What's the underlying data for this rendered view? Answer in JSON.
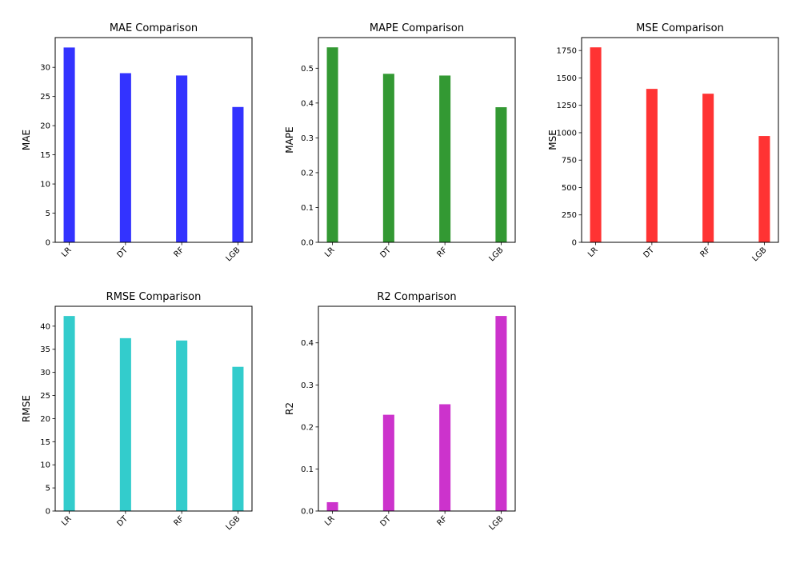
{
  "chart_data": [
    {
      "type": "bar",
      "title": "MAE Comparison",
      "xlabel": "",
      "ylabel": "MAE",
      "categories": [
        "LR",
        "DT",
        "RF",
        "LGB"
      ],
      "values": [
        33.4,
        29.0,
        28.6,
        23.2
      ],
      "ylim": [
        0,
        35.1
      ],
      "yticks": [
        0,
        5,
        10,
        15,
        20,
        25,
        30
      ],
      "color": "#3333ff",
      "grid": false
    },
    {
      "type": "bar",
      "title": "MAPE Comparison",
      "xlabel": "",
      "ylabel": "MAPE",
      "categories": [
        "LR",
        "DT",
        "RF",
        "LGB"
      ],
      "values": [
        0.56,
        0.484,
        0.479,
        0.388
      ],
      "ylim": [
        0,
        0.588
      ],
      "yticks": [
        0.0,
        0.1,
        0.2,
        0.3,
        0.4,
        0.5
      ],
      "ytick_decimals": 1,
      "color": "#339933",
      "grid": false
    },
    {
      "type": "bar",
      "title": "MSE Comparison",
      "xlabel": "",
      "ylabel": "MSE",
      "categories": [
        "LR",
        "DT",
        "RF",
        "LGB"
      ],
      "values": [
        1779,
        1400,
        1356,
        970
      ],
      "ylim": [
        0,
        1868
      ],
      "yticks": [
        0,
        250,
        500,
        750,
        1000,
        1250,
        1500,
        1750
      ],
      "color": "#ff3333",
      "grid": false
    },
    {
      "type": "bar",
      "title": "RMSE Comparison",
      "xlabel": "",
      "ylabel": "RMSE",
      "categories": [
        "LR",
        "DT",
        "RF",
        "LGB"
      ],
      "values": [
        42.2,
        37.4,
        36.9,
        31.2
      ],
      "ylim": [
        0,
        44.3
      ],
      "yticks": [
        0,
        5,
        10,
        15,
        20,
        25,
        30,
        35,
        40
      ],
      "color": "#33cccc",
      "grid": false
    },
    {
      "type": "bar",
      "title": "R2 Comparison",
      "xlabel": "",
      "ylabel": "R2",
      "categories": [
        "LR",
        "DT",
        "RF",
        "LGB"
      ],
      "values": [
        0.021,
        0.229,
        0.254,
        0.464
      ],
      "ylim": [
        0,
        0.487
      ],
      "yticks": [
        0.0,
        0.1,
        0.2,
        0.3,
        0.4
      ],
      "ytick_decimals": 1,
      "color": "#cc33cc",
      "grid": false
    }
  ]
}
